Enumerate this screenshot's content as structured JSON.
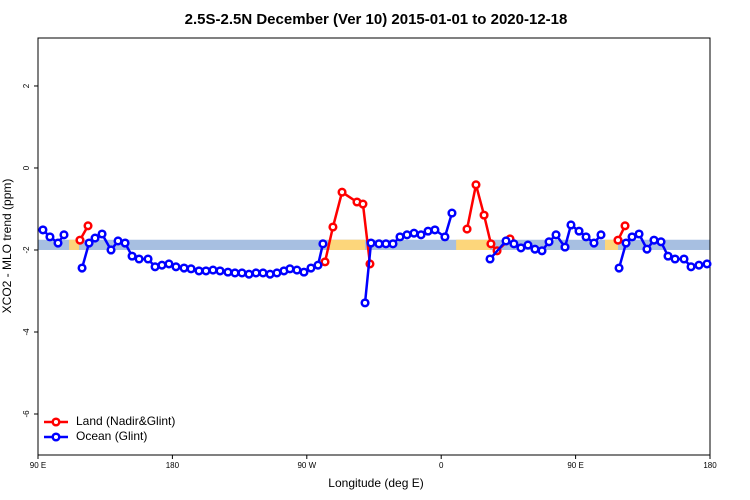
{
  "chart_data": {
    "type": "line",
    "title": "2.5S-2.5N December (Ver 10)   2015-01-01 to 2020-12-18",
    "x_label": "Longitude (deg E)",
    "y_label": "XCO2 - MLO trend (ppm)",
    "xlim": [
      90,
      540
    ],
    "ylim": [
      -7,
      3.17
    ],
    "xticks": [
      {
        "value": 90,
        "label": "90 E"
      },
      {
        "value": 180,
        "label": "180"
      },
      {
        "value": 270,
        "label": "90 W"
      },
      {
        "value": 360,
        "label": "0"
      },
      {
        "value": 450,
        "label": "90 E"
      },
      {
        "value": 540,
        "label": "180"
      }
    ],
    "yticks": [
      -6,
      -4,
      -2,
      0,
      2
    ],
    "legend": "bottom-left",
    "band": {
      "range": [
        -2.0,
        -1.75
      ],
      "color": "#a7bfe1",
      "land_color": "#fdd67b",
      "land_segments": [
        [
          110.8,
          117.5
        ],
        [
          285.5,
          309
        ],
        [
          370,
          392.7
        ],
        [
          469.7,
          478.4
        ]
      ]
    },
    "series": [
      {
        "name": "Land (Nadir&Glint)",
        "color": "#ff0000",
        "x": [
          118.1,
          123.5,
          null,
          282.2,
          287.5,
          293.6,
          303.6,
          307.6,
          312.3,
          null,
          377.3,
          383.3,
          388.7,
          393.3,
          397.4,
          406.1,
          null,
          478.4,
          483.1
        ],
        "values": [
          -1.76,
          -1.41,
          null,
          -2.29,
          -1.44,
          -0.59,
          -0.83,
          -0.88,
          -2.34,
          null,
          -1.49,
          -0.41,
          -1.15,
          -1.85,
          -2.02,
          -1.73,
          null,
          -1.76,
          -1.41
        ]
      },
      {
        "name": "Ocean (Glint)",
        "color": "#0000ff",
        "x": [
          93.3,
          98.0,
          103.4,
          107.4,
          null,
          119.5,
          124.2,
          128.2,
          132.9,
          138.9,
          143.6,
          148.3,
          153.0,
          157.7,
          163.7,
          168.4,
          173.0,
          177.7,
          182.4,
          187.8,
          192.5,
          197.8,
          202.5,
          207.2,
          211.9,
          217.2,
          221.9,
          226.6,
          231.3,
          236.0,
          240.7,
          245.4,
          250.0,
          254.7,
          258.7,
          263.4,
          268.1,
          272.8,
          277.5,
          280.8,
          null,
          309.0,
          313.0,
          318.3,
          323.0,
          327.7,
          332.4,
          337.1,
          341.8,
          346.5,
          351.2,
          355.8,
          362.5,
          367.2,
          null,
          392.7,
          403.4,
          408.7,
          413.4,
          418.1,
          422.8,
          427.5,
          432.2,
          436.9,
          442.9,
          446.9,
          452.3,
          457.0,
          462.3,
          467.0,
          null,
          479.1,
          483.8,
          487.8,
          492.5,
          497.8,
          502.5,
          507.2,
          511.9,
          516.6,
          522.6,
          527.3,
          532.6,
          538.0
        ],
        "values": [
          -1.51,
          -1.68,
          -1.83,
          -1.63,
          null,
          -2.44,
          -1.83,
          -1.71,
          -1.61,
          -2.0,
          -1.78,
          -1.83,
          -2.15,
          -2.22,
          -2.22,
          -2.41,
          -2.37,
          -2.34,
          -2.41,
          -2.44,
          -2.46,
          -2.51,
          -2.51,
          -2.49,
          -2.51,
          -2.54,
          -2.56,
          -2.56,
          -2.59,
          -2.56,
          -2.56,
          -2.59,
          -2.56,
          -2.51,
          -2.46,
          -2.49,
          -2.54,
          -2.44,
          -2.37,
          -1.85,
          null,
          -3.29,
          -1.83,
          -1.85,
          -1.85,
          -1.85,
          -1.68,
          -1.63,
          -1.59,
          -1.63,
          -1.54,
          -1.51,
          -1.68,
          -1.1,
          null,
          -2.22,
          -1.78,
          -1.85,
          -1.95,
          -1.88,
          -1.98,
          -2.02,
          -1.8,
          -1.63,
          -1.93,
          -1.39,
          -1.54,
          -1.68,
          -1.83,
          -1.63,
          null,
          -2.44,
          -1.83,
          -1.68,
          -1.61,
          -1.98,
          -1.76,
          -1.8,
          -2.15,
          -2.22,
          -2.22,
          -2.41,
          -2.37,
          -2.34
        ]
      }
    ]
  }
}
